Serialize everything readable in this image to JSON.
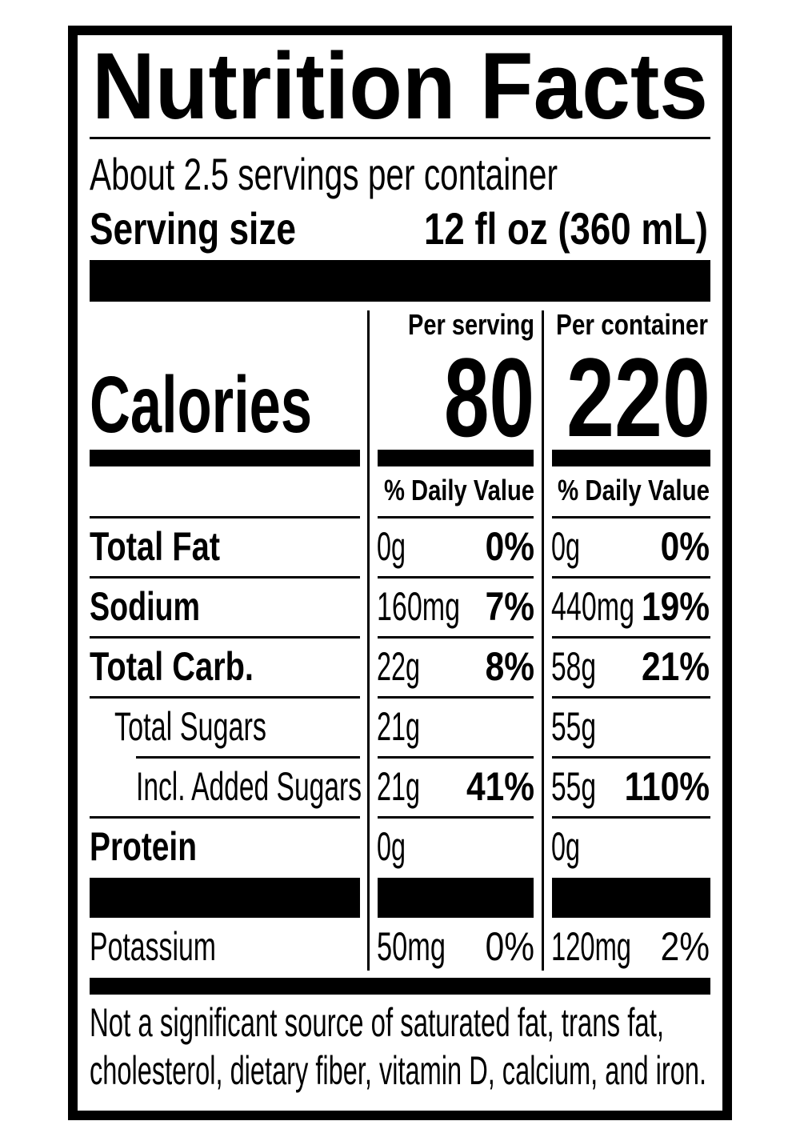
{
  "title": "Nutrition Facts",
  "servings_per_container": "About 2.5 servings per container",
  "serving_size": {
    "label": "Serving size",
    "value": "12 fl oz (360 mL)"
  },
  "columns": [
    "Per serving",
    "Per container"
  ],
  "calories": {
    "label": "Calories",
    "values": [
      "80",
      "220"
    ]
  },
  "daily_value_header": [
    "% Daily Value",
    "% Daily Value"
  ],
  "nutrients": [
    {
      "name": "Total Fat",
      "per_serving": [
        "0g",
        "0%"
      ],
      "per_container": [
        "0g",
        "0%"
      ]
    },
    {
      "name": "Sodium",
      "per_serving": [
        "160mg",
        "7%"
      ],
      "per_container": [
        "440mg",
        "19%"
      ]
    },
    {
      "name": "Total Carb.",
      "per_serving": [
        "22g",
        "8%"
      ],
      "per_container": [
        "58g",
        "21%"
      ]
    },
    {
      "name": "Total Sugars",
      "per_serving": [
        "21g"
      ],
      "per_container": [
        "55g"
      ]
    },
    {
      "name": "Incl. Added Sugars",
      "per_serving": [
        "21g",
        "41%"
      ],
      "per_container": [
        "55g",
        "110%"
      ]
    },
    {
      "name": "Protein",
      "per_serving": [
        "0g"
      ],
      "per_container": [
        "0g"
      ]
    },
    {
      "name": "Potassium",
      "per_serving": [
        "50mg",
        "0%"
      ],
      "per_container": [
        "120mg",
        "2%"
      ]
    }
  ],
  "footnote": [
    "Not a significant source of saturated fat, trans fat,",
    "cholesterol, dietary fiber, vitamin D, calcium, and iron."
  ]
}
